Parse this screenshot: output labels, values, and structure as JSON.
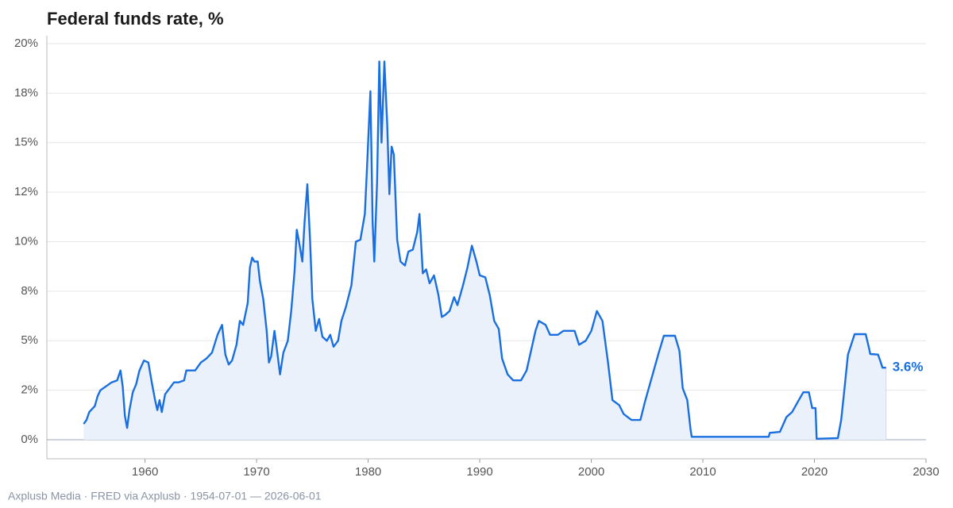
{
  "chart_data": {
    "type": "line",
    "title": "Federal funds rate, %",
    "source": "Axplusb Media · FRED via Axplusb · 1954-07-01 — 2026-06-01",
    "x": [
      1954.5,
      1954.75,
      1955.0,
      1955.5,
      1955.75,
      1956.0,
      1956.5,
      1957.0,
      1957.5,
      1957.8,
      1958.0,
      1958.2,
      1958.4,
      1958.6,
      1958.9,
      1959.2,
      1959.5,
      1959.9,
      1960.3,
      1960.6,
      1960.9,
      1961.1,
      1961.3,
      1961.5,
      1961.8,
      1962.2,
      1962.6,
      1963.0,
      1963.5,
      1963.7,
      1964.5,
      1965.0,
      1965.5,
      1966.0,
      1966.5,
      1966.9,
      1967.2,
      1967.5,
      1967.8,
      1968.2,
      1968.5,
      1968.8,
      1969.2,
      1969.4,
      1969.6,
      1969.8,
      1970.1,
      1970.3,
      1970.6,
      1970.9,
      1971.1,
      1971.3,
      1971.6,
      1971.9,
      1972.1,
      1972.4,
      1972.8,
      1973.1,
      1973.4,
      1973.6,
      1973.8,
      1974.1,
      1974.3,
      1974.55,
      1974.8,
      1975.0,
      1975.3,
      1975.6,
      1975.9,
      1976.3,
      1976.6,
      1976.9,
      1977.3,
      1977.6,
      1978.0,
      1978.5,
      1978.9,
      1979.3,
      1979.7,
      1979.9,
      1980.2,
      1980.4,
      1980.55,
      1980.8,
      1981.0,
      1981.2,
      1981.45,
      1981.7,
      1981.9,
      1982.1,
      1982.3,
      1982.6,
      1982.9,
      1983.3,
      1983.6,
      1984.0,
      1984.4,
      1984.6,
      1984.9,
      1985.2,
      1985.5,
      1985.9,
      1986.3,
      1986.6,
      1986.9,
      1987.3,
      1987.7,
      1988.0,
      1988.5,
      1988.9,
      1989.3,
      1989.7,
      1990.0,
      1990.5,
      1990.9,
      1991.3,
      1991.7,
      1992.0,
      1992.5,
      1993.0,
      1993.7,
      1994.2,
      1994.6,
      1995.0,
      1995.3,
      1995.9,
      1996.3,
      1997.0,
      1997.5,
      1998.5,
      1998.9,
      1999.5,
      2000.0,
      2000.5,
      2001.0,
      2001.5,
      2001.9,
      2002.5,
      2002.9,
      2003.6,
      2004.4,
      2004.8,
      2005.5,
      2006.0,
      2006.5,
      2007.5,
      2007.9,
      2008.2,
      2008.6,
      2008.9,
      2009.0,
      2015.9,
      2016.0,
      2016.9,
      2017.5,
      2018.0,
      2018.5,
      2019.0,
      2019.5,
      2019.8,
      2020.1,
      2020.2,
      2022.1,
      2022.4,
      2022.7,
      2023.0,
      2023.6,
      2024.6,
      2024.9,
      2025.0,
      2025.7,
      2025.95,
      2026.1,
      2026.42
    ],
    "values": [
      0.8,
      1.0,
      1.4,
      1.7,
      2.2,
      2.5,
      2.7,
      2.9,
      3.0,
      3.5,
      2.7,
      1.2,
      0.6,
      1.5,
      2.4,
      2.8,
      3.5,
      4.0,
      3.9,
      2.9,
      2.0,
      1.5,
      2.0,
      1.4,
      2.3,
      2.6,
      2.9,
      2.9,
      3.0,
      3.5,
      3.5,
      3.9,
      4.1,
      4.4,
      5.3,
      5.8,
      4.3,
      3.8,
      4.0,
      4.8,
      6.0,
      5.8,
      6.9,
      8.7,
      9.2,
      9.0,
      9.0,
      8.0,
      7.1,
      5.5,
      3.9,
      4.2,
      5.5,
      4.2,
      3.3,
      4.4,
      5.0,
      6.5,
      8.5,
      10.6,
      10.0,
      9.0,
      11.0,
      12.9,
      10.0,
      7.1,
      5.5,
      6.1,
      5.2,
      5.0,
      5.3,
      4.7,
      5.0,
      6.0,
      6.7,
      7.8,
      10.0,
      10.1,
      11.4,
      13.8,
      17.6,
      11.0,
      9.0,
      13.0,
      19.1,
      15.0,
      19.1,
      16.0,
      12.4,
      14.8,
      14.4,
      10.1,
      9.0,
      8.8,
      9.5,
      9.6,
      10.5,
      11.4,
      8.4,
      8.6,
      7.9,
      8.3,
      7.3,
      6.2,
      6.3,
      6.5,
      7.2,
      6.8,
      7.8,
      8.7,
      9.8,
      9.0,
      8.3,
      8.2,
      7.3,
      6.0,
      5.6,
      4.1,
      3.3,
      3.0,
      3.0,
      3.5,
      4.5,
      5.5,
      6.0,
      5.8,
      5.3,
      5.3,
      5.5,
      5.5,
      4.8,
      5.0,
      5.5,
      6.5,
      6.0,
      3.9,
      2.0,
      1.75,
      1.3,
      1.0,
      1.0,
      1.9,
      3.3,
      4.3,
      5.25,
      5.25,
      4.5,
      2.6,
      2.0,
      0.5,
      0.15,
      0.15,
      0.35,
      0.4,
      1.15,
      1.4,
      1.9,
      2.4,
      2.4,
      1.6,
      1.6,
      0.05,
      0.08,
      1.0,
      2.6,
      4.3,
      5.33,
      5.33,
      4.6,
      4.33,
      4.3,
      3.9,
      3.64,
      3.64
    ],
    "last_value_label": "3.6%",
    "color": "#1a6fe0",
    "fill_color": "#eaf1fb",
    "xlim": [
      1951.2,
      2030
    ],
    "xticks": [
      1960,
      1970,
      1980,
      1990,
      2000,
      2010,
      2020,
      2030
    ],
    "ylim": [
      -0.96,
      20.4
    ],
    "yticks": [
      {
        "value": 0,
        "label": "0%"
      },
      {
        "value": 2.5,
        "label": "2%"
      },
      {
        "value": 5,
        "label": "5%"
      },
      {
        "value": 7.5,
        "label": "8%"
      },
      {
        "value": 10,
        "label": "10%"
      },
      {
        "value": 12.5,
        "label": "12%"
      },
      {
        "value": 15,
        "label": "15%"
      },
      {
        "value": 17.5,
        "label": "18%"
      },
      {
        "value": 20,
        "label": "20%"
      }
    ],
    "grid": true
  }
}
